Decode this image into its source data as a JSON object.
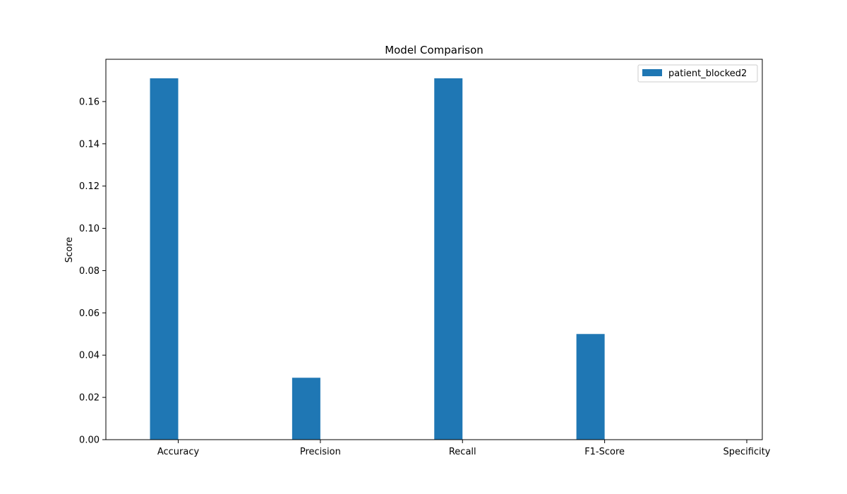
{
  "chart_data": {
    "type": "bar",
    "title": "Model Comparison",
    "xlabel": "",
    "ylabel": "Score",
    "categories": [
      "Accuracy",
      "Precision",
      "Recall",
      "F1-Score",
      "Specificity"
    ],
    "series": [
      {
        "name": "patient_blocked2",
        "values": [
          0.171,
          0.0293,
          0.171,
          0.05,
          0.0
        ],
        "color": "#1f77b4"
      }
    ],
    "ylim": [
      0,
      0.18
    ],
    "yticks": [
      0.0,
      0.02,
      0.04,
      0.06,
      0.08,
      0.1,
      0.12,
      0.14,
      0.16
    ],
    "ytick_labels": [
      "0.00",
      "0.02",
      "0.04",
      "0.06",
      "0.08",
      "0.10",
      "0.12",
      "0.14",
      "0.16"
    ],
    "grid": false,
    "legend_position": "top-right"
  }
}
